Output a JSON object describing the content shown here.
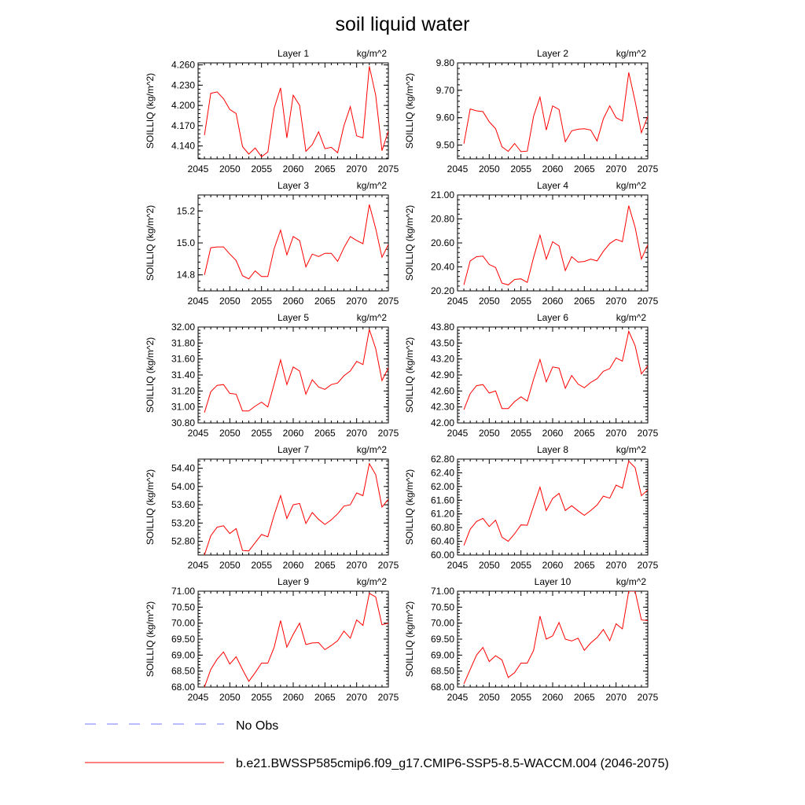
{
  "title": "soil liquid water",
  "legend": {
    "obs_label": "No Obs",
    "obs_color": "#7777ff",
    "model_label": "b.e21.BWSSP585cmip6.f09_g17.CMIP6-SSP5-8.5-WACCM.004 (2046-2075)",
    "model_color": "#ff0000"
  },
  "chart_data": [
    {
      "type": "line",
      "title": "Layer 1",
      "units": "kg/m^2",
      "ylabel": "SOILLIQ  (kg/m^2)",
      "x": [
        2046,
        2047,
        2048,
        2049,
        2050,
        2051,
        2052,
        2053,
        2054,
        2055,
        2056,
        2057,
        2058,
        2059,
        2060,
        2061,
        2062,
        2063,
        2064,
        2065,
        2066,
        2067,
        2068,
        2069,
        2070,
        2071,
        2072,
        2073,
        2074,
        2075
      ],
      "xlim": [
        2045,
        2075
      ],
      "xticks": [
        2045,
        2050,
        2055,
        2060,
        2065,
        2070,
        2075
      ],
      "ylim": [
        4.121,
        4.263
      ],
      "yticks": [
        4.14,
        4.17,
        4.2,
        4.23,
        4.26
      ],
      "ytick_labels": [
        "4.140",
        "4.170",
        "4.200",
        "4.230",
        "4.260"
      ],
      "series": [
        {
          "name": "b.e21.BWSSP585cmip6.f09_g17.CMIP6-SSP5-8.5-WACCM.004",
          "values": [
            4.156,
            4.218,
            4.22,
            4.21,
            4.194,
            4.188,
            4.139,
            4.128,
            4.137,
            4.124,
            4.131,
            4.196,
            4.226,
            4.152,
            4.215,
            4.2,
            4.132,
            4.142,
            4.161,
            4.136,
            4.138,
            4.13,
            4.17,
            4.198,
            4.155,
            4.152,
            4.258,
            4.215,
            4.133,
            4.162
          ]
        }
      ]
    },
    {
      "type": "line",
      "title": "Layer 2",
      "units": "kg/m^2",
      "ylabel": "SOILLIQ  (kg/m^2)",
      "x": [
        2046,
        2047,
        2048,
        2049,
        2050,
        2051,
        2052,
        2053,
        2054,
        2055,
        2056,
        2057,
        2058,
        2059,
        2060,
        2061,
        2062,
        2063,
        2064,
        2065,
        2066,
        2067,
        2068,
        2069,
        2070,
        2071,
        2072,
        2073,
        2074,
        2075
      ],
      "xlim": [
        2045,
        2075
      ],
      "xticks": [
        2045,
        2050,
        2055,
        2060,
        2065,
        2070,
        2075
      ],
      "ylim": [
        9.45,
        9.8
      ],
      "yticks": [
        9.5,
        9.6,
        9.7,
        9.8
      ],
      "ytick_labels": [
        "9.50",
        "9.60",
        "9.70",
        "9.80"
      ],
      "series": [
        {
          "name": "b.e21.BWSSP585cmip6.f09_g17.CMIP6-SSP5-8.5-WACCM.004",
          "values": [
            9.505,
            9.632,
            9.625,
            9.622,
            9.585,
            9.56,
            9.494,
            9.477,
            9.506,
            9.476,
            9.478,
            9.606,
            9.675,
            9.555,
            9.643,
            9.63,
            9.512,
            9.552,
            9.558,
            9.56,
            9.555,
            9.515,
            9.596,
            9.643,
            9.6,
            9.588,
            9.765,
            9.66,
            9.545,
            9.605
          ]
        }
      ]
    },
    {
      "type": "line",
      "title": "Layer 3",
      "units": "kg/m^2",
      "ylabel": "SOILLIQ  (kg/m^2)",
      "x": [
        2046,
        2047,
        2048,
        2049,
        2050,
        2051,
        2052,
        2053,
        2054,
        2055,
        2056,
        2057,
        2058,
        2059,
        2060,
        2061,
        2062,
        2063,
        2064,
        2065,
        2066,
        2067,
        2068,
        2069,
        2070,
        2071,
        2072,
        2073,
        2074,
        2075
      ],
      "xlim": [
        2045,
        2075
      ],
      "xticks": [
        2045,
        2050,
        2055,
        2060,
        2065,
        2070,
        2075
      ],
      "ylim": [
        14.7,
        15.3
      ],
      "yticks": [
        14.8,
        15.0,
        15.2
      ],
      "ytick_labels": [
        "14.8",
        "15.0",
        "15.2"
      ],
      "series": [
        {
          "name": "b.e21.BWSSP585cmip6.f09_g17.CMIP6-SSP5-8.5-WACCM.004",
          "values": [
            14.8,
            14.97,
            14.975,
            14.975,
            14.93,
            14.89,
            14.795,
            14.775,
            14.825,
            14.79,
            14.79,
            14.965,
            15.08,
            14.925,
            15.04,
            15.015,
            14.85,
            14.93,
            14.915,
            14.935,
            14.935,
            14.885,
            14.97,
            15.04,
            15.015,
            14.995,
            15.24,
            15.09,
            14.91,
            14.99
          ]
        }
      ]
    },
    {
      "type": "line",
      "title": "Layer 4",
      "units": "kg/m^2",
      "ylabel": "SOILLIQ  (kg/m^2)",
      "x": [
        2046,
        2047,
        2048,
        2049,
        2050,
        2051,
        2052,
        2053,
        2054,
        2055,
        2056,
        2057,
        2058,
        2059,
        2060,
        2061,
        2062,
        2063,
        2064,
        2065,
        2066,
        2067,
        2068,
        2069,
        2070,
        2071,
        2072,
        2073,
        2074,
        2075
      ],
      "xlim": [
        2045,
        2075
      ],
      "xticks": [
        2045,
        2050,
        2055,
        2060,
        2065,
        2070,
        2075
      ],
      "ylim": [
        20.2,
        21.0
      ],
      "yticks": [
        20.2,
        20.4,
        20.6,
        20.8,
        21.0
      ],
      "ytick_labels": [
        "20.20",
        "20.40",
        "20.60",
        "20.80",
        "21.00"
      ],
      "series": [
        {
          "name": "b.e21.BWSSP585cmip6.f09_g17.CMIP6-SSP5-8.5-WACCM.004",
          "values": [
            20.25,
            20.45,
            20.485,
            20.49,
            20.42,
            20.395,
            20.265,
            20.25,
            20.295,
            20.3,
            20.27,
            20.48,
            20.665,
            20.465,
            20.61,
            20.575,
            20.37,
            20.485,
            20.44,
            20.445,
            20.465,
            20.45,
            20.53,
            20.595,
            20.63,
            20.61,
            20.91,
            20.73,
            20.465,
            20.585
          ]
        }
      ]
    },
    {
      "type": "line",
      "title": "Layer 5",
      "units": "kg/m^2",
      "ylabel": "SOILLIQ  (kg/m^2)",
      "x": [
        2046,
        2047,
        2048,
        2049,
        2050,
        2051,
        2052,
        2053,
        2054,
        2055,
        2056,
        2057,
        2058,
        2059,
        2060,
        2061,
        2062,
        2063,
        2064,
        2065,
        2066,
        2067,
        2068,
        2069,
        2070,
        2071,
        2072,
        2073,
        2074,
        2075
      ],
      "xlim": [
        2045,
        2075
      ],
      "xticks": [
        2045,
        2050,
        2055,
        2060,
        2065,
        2070,
        2075
      ],
      "ylim": [
        30.8,
        32.0
      ],
      "yticks": [
        30.8,
        31.0,
        31.2,
        31.4,
        31.6,
        31.8,
        32.0
      ],
      "ytick_labels": [
        "30.80",
        "31.00",
        "31.20",
        "31.40",
        "31.60",
        "31.80",
        "32.00"
      ],
      "series": [
        {
          "name": "b.e21.BWSSP585cmip6.f09_g17.CMIP6-SSP5-8.5-WACCM.004",
          "values": [
            30.93,
            31.19,
            31.27,
            31.28,
            31.17,
            31.16,
            30.95,
            30.95,
            31.01,
            31.06,
            31.0,
            31.29,
            31.59,
            31.28,
            31.5,
            31.45,
            31.16,
            31.34,
            31.25,
            31.22,
            31.28,
            31.3,
            31.39,
            31.45,
            31.57,
            31.53,
            31.97,
            31.73,
            31.33,
            31.49
          ]
        }
      ]
    },
    {
      "type": "line",
      "title": "Layer 6",
      "units": "kg/m^2",
      "ylabel": "SOILLIQ  (kg/m^2)",
      "x": [
        2046,
        2047,
        2048,
        2049,
        2050,
        2051,
        2052,
        2053,
        2054,
        2055,
        2056,
        2057,
        2058,
        2059,
        2060,
        2061,
        2062,
        2063,
        2064,
        2065,
        2066,
        2067,
        2068,
        2069,
        2070,
        2071,
        2072,
        2073,
        2074,
        2075
      ],
      "xlim": [
        2045,
        2075
      ],
      "xticks": [
        2045,
        2050,
        2055,
        2060,
        2065,
        2070,
        2075
      ],
      "ylim": [
        42.0,
        43.8
      ],
      "yticks": [
        42.0,
        42.3,
        42.6,
        42.9,
        43.2,
        43.5,
        43.8
      ],
      "ytick_labels": [
        "42.00",
        "42.30",
        "42.60",
        "42.90",
        "43.20",
        "43.50",
        "43.80"
      ],
      "series": [
        {
          "name": "b.e21.BWSSP585cmip6.f09_g17.CMIP6-SSP5-8.5-WACCM.004",
          "values": [
            42.25,
            42.55,
            42.7,
            42.72,
            42.56,
            42.6,
            42.27,
            42.27,
            42.4,
            42.49,
            42.41,
            42.82,
            43.19,
            42.77,
            43.05,
            43.03,
            42.65,
            42.89,
            42.73,
            42.66,
            42.76,
            42.83,
            42.97,
            43.02,
            43.22,
            43.16,
            43.72,
            43.45,
            42.92,
            43.07
          ]
        }
      ]
    },
    {
      "type": "line",
      "title": "Layer 7",
      "units": "kg/m^2",
      "ylabel": "SOILLIQ  (kg/m^2)",
      "x": [
        2046,
        2047,
        2048,
        2049,
        2050,
        2051,
        2052,
        2053,
        2054,
        2055,
        2056,
        2057,
        2058,
        2059,
        2060,
        2061,
        2062,
        2063,
        2064,
        2065,
        2066,
        2067,
        2068,
        2069,
        2070,
        2071,
        2072,
        2073,
        2074,
        2075
      ],
      "xlim": [
        2045,
        2075
      ],
      "xticks": [
        2045,
        2050,
        2055,
        2060,
        2065,
        2070,
        2075
      ],
      "ylim": [
        52.5,
        54.6
      ],
      "yticks": [
        52.8,
        53.2,
        53.6,
        54.0,
        54.4
      ],
      "ytick_labels": [
        "52.80",
        "53.20",
        "53.60",
        "54.00",
        "54.40"
      ],
      "series": [
        {
          "name": "b.e21.BWSSP585cmip6.f09_g17.CMIP6-SSP5-8.5-WACCM.004",
          "values": [
            52.5,
            52.92,
            53.11,
            53.14,
            52.97,
            53.08,
            52.6,
            52.59,
            52.77,
            52.95,
            52.9,
            53.38,
            53.8,
            53.3,
            53.6,
            53.63,
            53.19,
            53.43,
            53.28,
            53.17,
            53.27,
            53.4,
            53.57,
            53.6,
            53.86,
            53.8,
            54.5,
            54.26,
            53.55,
            53.72
          ]
        }
      ]
    },
    {
      "type": "line",
      "title": "Layer 8",
      "units": "kg/m^2",
      "ylabel": "SOILLIQ  (kg/m^2)",
      "x": [
        2046,
        2047,
        2048,
        2049,
        2050,
        2051,
        2052,
        2053,
        2054,
        2055,
        2056,
        2057,
        2058,
        2059,
        2060,
        2061,
        2062,
        2063,
        2064,
        2065,
        2066,
        2067,
        2068,
        2069,
        2070,
        2071,
        2072,
        2073,
        2074,
        2075
      ],
      "xlim": [
        2045,
        2075
      ],
      "xticks": [
        2045,
        2050,
        2055,
        2060,
        2065,
        2070,
        2075
      ],
      "ylim": [
        60.0,
        62.8
      ],
      "yticks": [
        60.0,
        60.4,
        60.8,
        61.2,
        61.6,
        62.0,
        62.4,
        62.8
      ],
      "ytick_labels": [
        "60.00",
        "60.40",
        "60.80",
        "61.20",
        "61.60",
        "62.00",
        "62.40",
        "62.80"
      ],
      "series": [
        {
          "name": "b.e21.BWSSP585cmip6.f09_g17.CMIP6-SSP5-8.5-WACCM.004",
          "values": [
            60.28,
            60.75,
            60.98,
            61.07,
            60.83,
            61.02,
            60.52,
            60.4,
            60.62,
            60.88,
            60.87,
            61.43,
            61.98,
            61.3,
            61.65,
            61.8,
            61.3,
            61.44,
            61.29,
            61.16,
            61.3,
            61.46,
            61.72,
            61.66,
            62.04,
            61.95,
            62.74,
            62.55,
            61.73,
            61.9
          ]
        }
      ]
    },
    {
      "type": "line",
      "title": "Layer 9",
      "units": "kg/m^2",
      "ylabel": "SOILLIQ  (kg/m^2)",
      "x": [
        2046,
        2047,
        2048,
        2049,
        2050,
        2051,
        2052,
        2053,
        2054,
        2055,
        2056,
        2057,
        2058,
        2059,
        2060,
        2061,
        2062,
        2063,
        2064,
        2065,
        2066,
        2067,
        2068,
        2069,
        2070,
        2071,
        2072,
        2073,
        2074,
        2075
      ],
      "xlim": [
        2045,
        2075
      ],
      "xticks": [
        2045,
        2050,
        2055,
        2060,
        2065,
        2070,
        2075
      ],
      "ylim": [
        68.0,
        71.0
      ],
      "yticks": [
        68.0,
        68.5,
        69.0,
        69.5,
        70.0,
        70.5,
        71.0
      ],
      "ytick_labels": [
        "68.00",
        "68.50",
        "69.00",
        "69.50",
        "70.00",
        "70.50",
        "71.00"
      ],
      "series": [
        {
          "name": "b.e21.BWSSP585cmip6.f09_g17.CMIP6-SSP5-8.5-WACCM.004",
          "values": [
            68.0,
            68.55,
            68.87,
            69.1,
            68.72,
            68.95,
            68.55,
            68.18,
            68.45,
            68.75,
            68.75,
            69.25,
            70.08,
            69.25,
            69.65,
            70.0,
            69.33,
            69.38,
            69.39,
            69.17,
            69.3,
            69.45,
            69.75,
            69.53,
            70.1,
            69.93,
            70.93,
            70.82,
            69.95,
            70.0
          ]
        }
      ]
    },
    {
      "type": "line",
      "title": "Layer 10",
      "units": "kg/m^2",
      "ylabel": "SOILLIQ  (kg/m^2)",
      "x": [
        2046,
        2047,
        2048,
        2049,
        2050,
        2051,
        2052,
        2053,
        2054,
        2055,
        2056,
        2057,
        2058,
        2059,
        2060,
        2061,
        2062,
        2063,
        2064,
        2065,
        2066,
        2067,
        2068,
        2069,
        2070,
        2071,
        2072,
        2073,
        2074,
        2075
      ],
      "xlim": [
        2045,
        2075
      ],
      "xticks": [
        2045,
        2050,
        2055,
        2060,
        2065,
        2070,
        2075
      ],
      "ylim": [
        68.0,
        71.0
      ],
      "yticks": [
        68.0,
        68.5,
        69.0,
        69.5,
        70.0,
        70.5,
        71.0
      ],
      "ytick_labels": [
        "68.00",
        "68.50",
        "69.00",
        "69.50",
        "70.00",
        "70.50",
        "71.00"
      ],
      "series": [
        {
          "name": "b.e21.BWSSP585cmip6.f09_g17.CMIP6-SSP5-8.5-WACCM.004",
          "values": [
            68.1,
            68.55,
            69.0,
            69.24,
            68.8,
            68.98,
            68.85,
            68.3,
            68.45,
            68.75,
            68.75,
            69.15,
            70.22,
            69.5,
            69.6,
            70.02,
            69.5,
            69.44,
            69.53,
            69.15,
            69.38,
            69.55,
            69.8,
            69.45,
            69.98,
            69.82,
            71.0,
            71.0,
            70.1,
            70.08
          ]
        }
      ]
    }
  ]
}
